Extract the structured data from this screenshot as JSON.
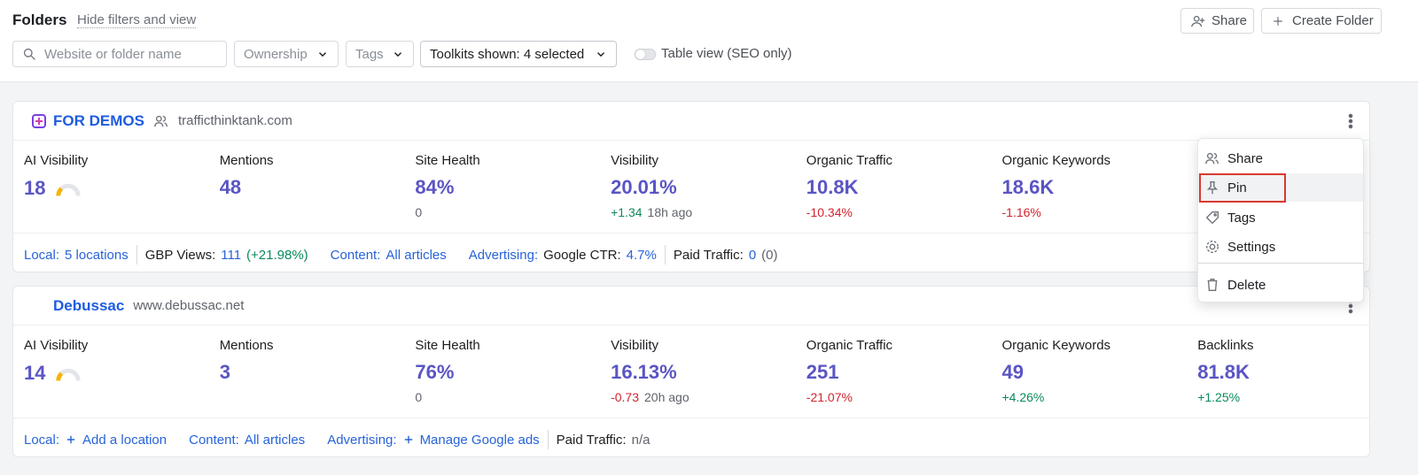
{
  "header": {
    "title": "Folders",
    "toggle_filters": "Hide filters and view",
    "share": "Share",
    "create": "Create Folder"
  },
  "filters": {
    "search_placeholder": "Website or folder name",
    "ownership": "Ownership",
    "tags": "Tags",
    "toolkits": "Toolkits shown: 4 selected",
    "table_view": "Table view (SEO only)"
  },
  "folders": [
    {
      "name": "FOR DEMOS",
      "shared": true,
      "domain": "trafficthinktank.com",
      "metrics": [
        {
          "label": "AI Visibility",
          "value": "18",
          "gauge": true,
          "sub": []
        },
        {
          "label": "Mentions",
          "value": "48",
          "sub": []
        },
        {
          "label": "Site Health",
          "value": "84%",
          "sub": [
            {
              "text": "0",
              "color": "#5f636b"
            }
          ]
        },
        {
          "label": "Visibility",
          "value": "20.01%",
          "sub": [
            {
              "text": "+1.34",
              "color": "#0b8a5a"
            },
            {
              "text": "18h ago",
              "color": "#5f636b"
            }
          ]
        },
        {
          "label": "Organic Traffic",
          "value": "10.8K",
          "sub": [
            {
              "text": "-10.34%",
              "color": "#d1232f"
            }
          ]
        },
        {
          "label": "Organic Keywords",
          "value": "18.6K",
          "sub": [
            {
              "text": "-1.16%",
              "color": "#d1232f"
            }
          ]
        }
      ],
      "footer": [
        {
          "parts": [
            {
              "text": "Local:",
              "color": "#2763d9"
            },
            {
              "text": "5 locations",
              "color": "#2763d9"
            }
          ]
        },
        {
          "divider": true,
          "parts": [
            {
              "text": "GBP Views:",
              "color": "#1c1e21"
            },
            {
              "text": "111",
              "color": "#2763d9"
            },
            {
              "text": "(+21.98%)",
              "color": "#0b8a5a"
            }
          ]
        },
        {
          "parts": [
            {
              "text": "Content:",
              "color": "#2763d9"
            },
            {
              "text": "All articles",
              "color": "#2763d9"
            }
          ]
        },
        {
          "parts": [
            {
              "text": "Advertising:",
              "color": "#2763d9"
            },
            {
              "text": "Google CTR:",
              "color": "#1c1e21"
            },
            {
              "text": "4.7%",
              "color": "#2763d9"
            }
          ]
        },
        {
          "divider": true,
          "parts": [
            {
              "text": "Paid Traffic:",
              "color": "#1c1e21"
            },
            {
              "text": "0",
              "color": "#2763d9"
            },
            {
              "text": "(0)",
              "color": "#5f636b"
            }
          ]
        }
      ]
    },
    {
      "name": "Debussac",
      "shared": false,
      "domain": "www.debussac.net",
      "metrics": [
        {
          "label": "AI Visibility",
          "value": "14",
          "gauge": true,
          "sub": []
        },
        {
          "label": "Mentions",
          "value": "3",
          "sub": []
        },
        {
          "label": "Site Health",
          "value": "76%",
          "sub": [
            {
              "text": "0",
              "color": "#5f636b"
            }
          ]
        },
        {
          "label": "Visibility",
          "value": "16.13%",
          "sub": [
            {
              "text": "-0.73",
              "color": "#d1232f"
            },
            {
              "text": "20h ago",
              "color": "#5f636b"
            }
          ]
        },
        {
          "label": "Organic Traffic",
          "value": "251",
          "sub": [
            {
              "text": "-21.07%",
              "color": "#d1232f"
            }
          ]
        },
        {
          "label": "Organic Keywords",
          "value": "49",
          "sub": [
            {
              "text": "+4.26%",
              "color": "#0b8a5a"
            }
          ]
        },
        {
          "label": "Backlinks",
          "value": "81.8K",
          "sub": [
            {
              "text": "+1.25%",
              "color": "#0b8a5a"
            }
          ]
        }
      ],
      "footer": [
        {
          "parts": [
            {
              "text": "Local:",
              "color": "#2763d9"
            },
            {
              "text": "Add a location",
              "color": "#2763d9",
              "plus": true
            }
          ]
        },
        {
          "parts": [
            {
              "text": "Content:",
              "color": "#2763d9"
            },
            {
              "text": "All articles",
              "color": "#2763d9"
            }
          ]
        },
        {
          "parts": [
            {
              "text": "Advertising:",
              "color": "#2763d9"
            },
            {
              "text": "Manage Google ads",
              "color": "#2763d9",
              "plus": true
            }
          ]
        },
        {
          "divider": true,
          "parts": [
            {
              "text": "Paid Traffic:",
              "color": "#1c1e21"
            },
            {
              "text": "n/a",
              "color": "#5f636b"
            }
          ]
        }
      ]
    }
  ],
  "menu": {
    "items": [
      "Share",
      "Pin",
      "Tags",
      "Settings",
      "Delete"
    ],
    "highlighted": 1
  }
}
